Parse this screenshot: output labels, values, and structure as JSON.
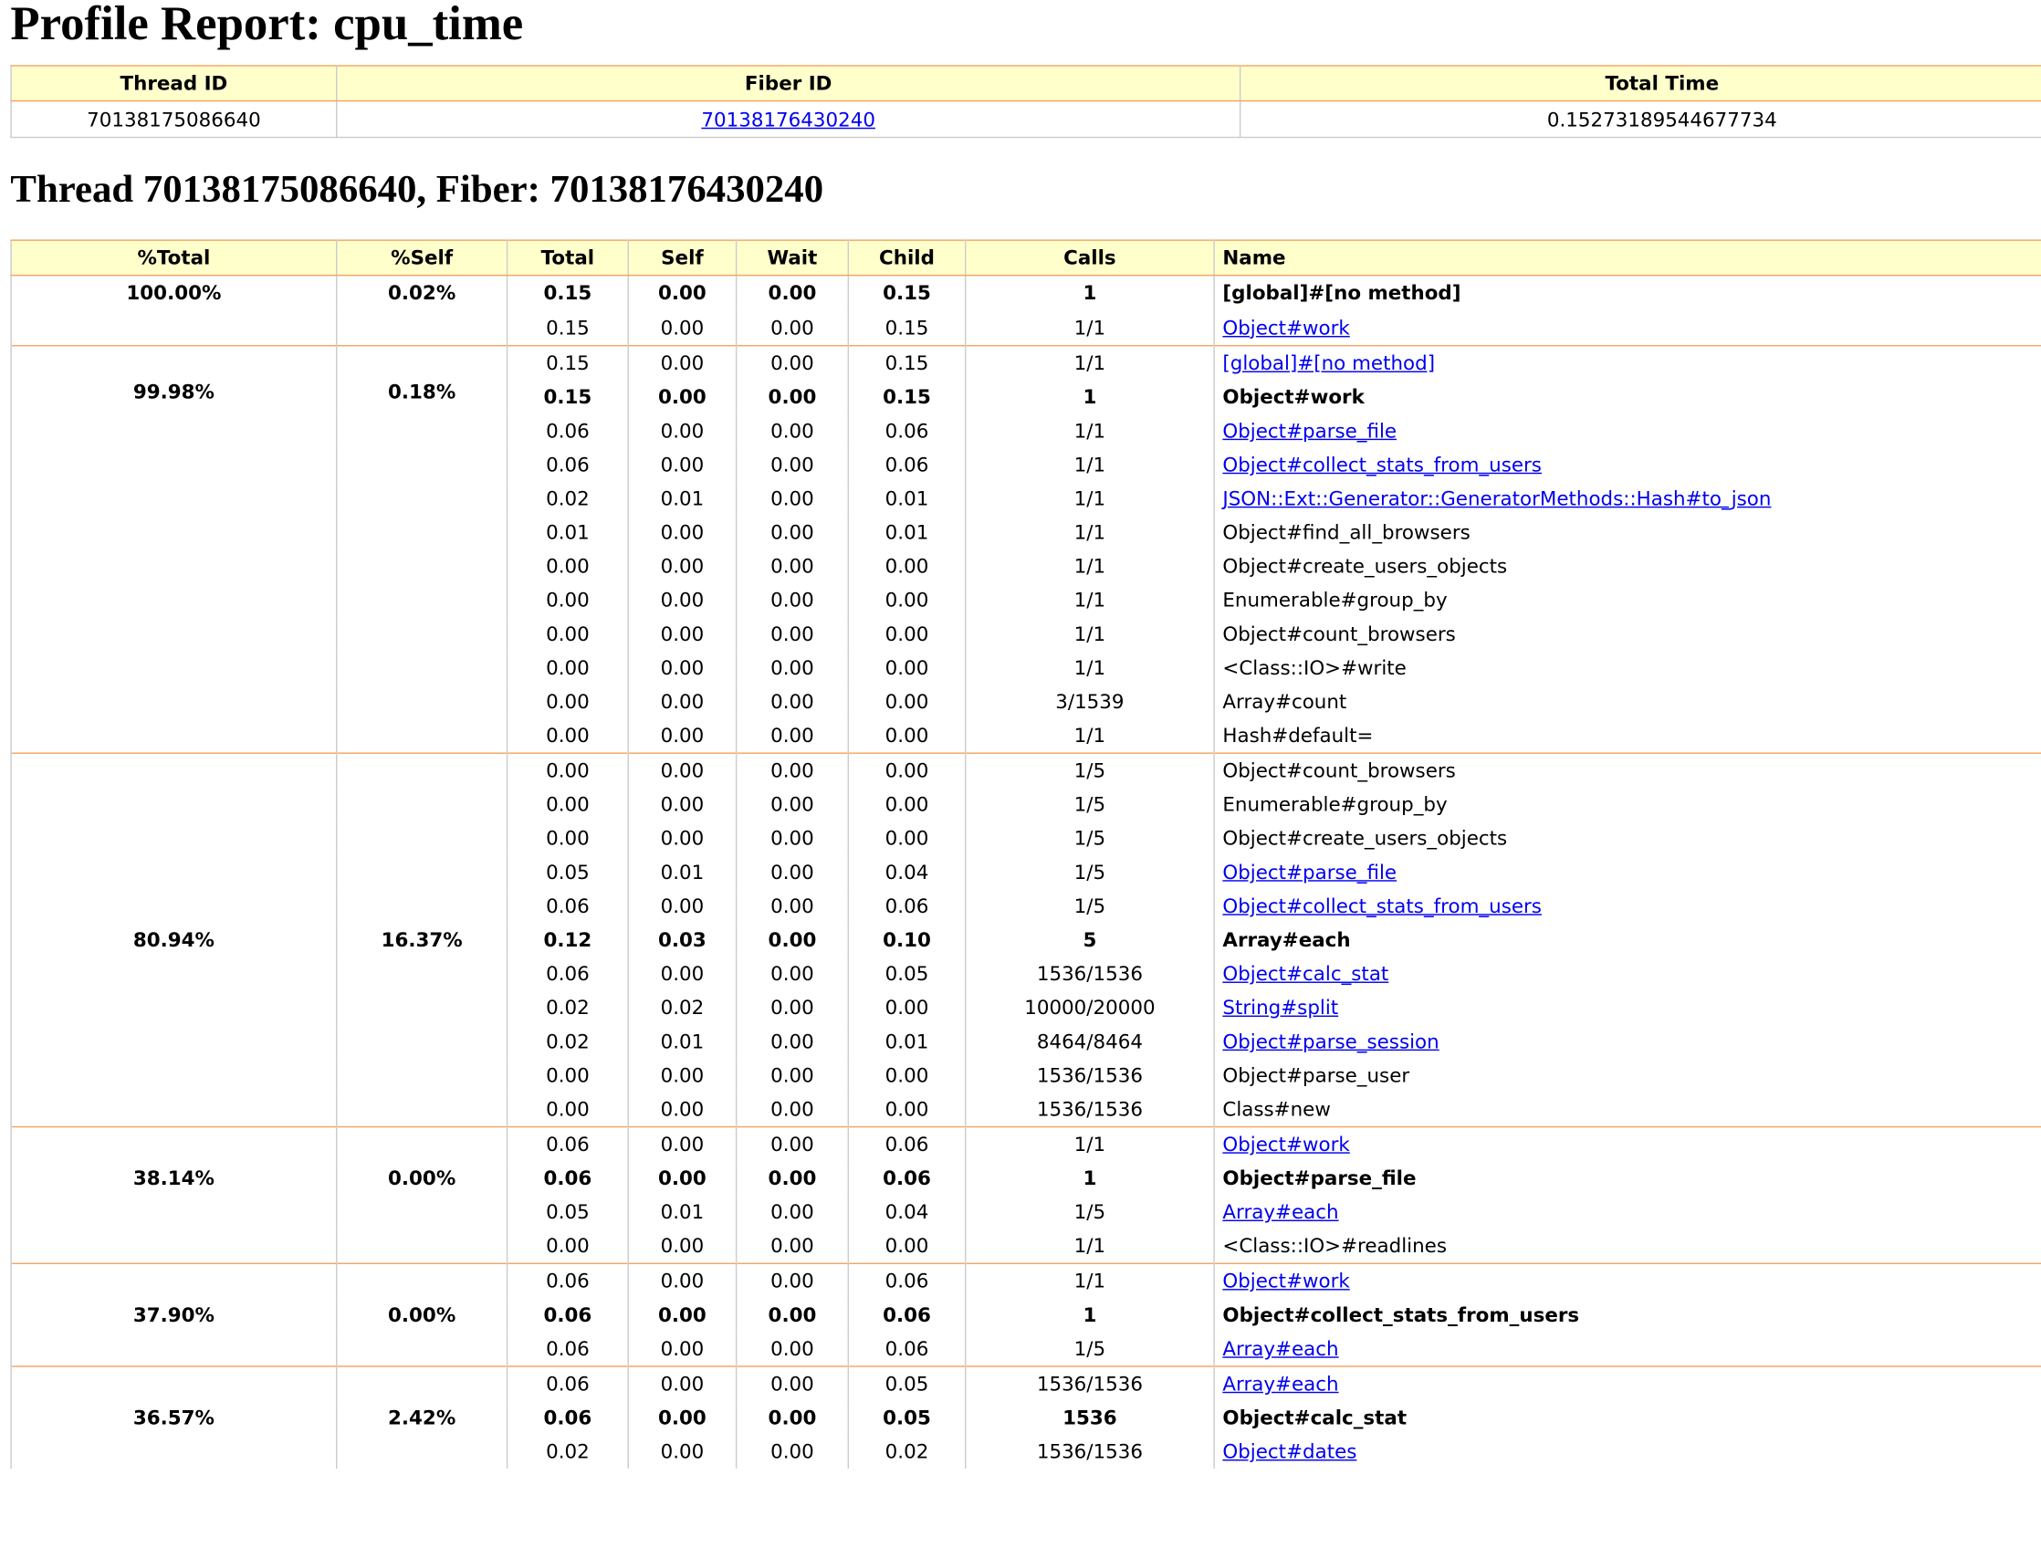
{
  "page_title": "Profile Report: cpu_time",
  "thread_table": {
    "headers": [
      "Thread ID",
      "Fiber ID",
      "Total Time"
    ],
    "row": {
      "thread_id": "70138175086640",
      "fiber_id": "70138176430240",
      "total_time": "0.15273189544677734"
    }
  },
  "thread_heading": "Thread 70138175086640, Fiber: 70138176430240",
  "method_table": {
    "headers": [
      "%Total",
      "%Self",
      "Total",
      "Self",
      "Wait",
      "Child",
      "Calls",
      "Name"
    ],
    "groups": [
      {
        "pct_total": "100.00%",
        "pct_self": "0.02%",
        "rows": [
          {
            "total": "0.15",
            "self": "0.00",
            "wait": "0.00",
            "child": "0.15",
            "calls": "1",
            "name": "[global]#[no method]",
            "kind": "primary"
          },
          {
            "total": "0.15",
            "self": "0.00",
            "wait": "0.00",
            "child": "0.15",
            "calls": "1/1",
            "name": "Object#work",
            "kind": "link"
          }
        ]
      },
      {
        "pct_total": "99.98%",
        "pct_self": "0.18%",
        "rows": [
          {
            "total": "0.15",
            "self": "0.00",
            "wait": "0.00",
            "child": "0.15",
            "calls": "1/1",
            "name": "[global]#[no method]",
            "kind": "link"
          },
          {
            "total": "0.15",
            "self": "0.00",
            "wait": "0.00",
            "child": "0.15",
            "calls": "1",
            "name": "Object#work",
            "kind": "primary"
          },
          {
            "total": "0.06",
            "self": "0.00",
            "wait": "0.00",
            "child": "0.06",
            "calls": "1/1",
            "name": "Object#parse_file",
            "kind": "link"
          },
          {
            "total": "0.06",
            "self": "0.00",
            "wait": "0.00",
            "child": "0.06",
            "calls": "1/1",
            "name": "Object#collect_stats_from_users",
            "kind": "link"
          },
          {
            "total": "0.02",
            "self": "0.01",
            "wait": "0.00",
            "child": "0.01",
            "calls": "1/1",
            "name": "JSON::Ext::Generator::GeneratorMethods::Hash#to_json",
            "kind": "link"
          },
          {
            "total": "0.01",
            "self": "0.00",
            "wait": "0.00",
            "child": "0.01",
            "calls": "1/1",
            "name": "Object#find_all_browsers",
            "kind": "text"
          },
          {
            "total": "0.00",
            "self": "0.00",
            "wait": "0.00",
            "child": "0.00",
            "calls": "1/1",
            "name": "Object#create_users_objects",
            "kind": "text"
          },
          {
            "total": "0.00",
            "self": "0.00",
            "wait": "0.00",
            "child": "0.00",
            "calls": "1/1",
            "name": "Enumerable#group_by",
            "kind": "text"
          },
          {
            "total": "0.00",
            "self": "0.00",
            "wait": "0.00",
            "child": "0.00",
            "calls": "1/1",
            "name": "Object#count_browsers",
            "kind": "text"
          },
          {
            "total": "0.00",
            "self": "0.00",
            "wait": "0.00",
            "child": "0.00",
            "calls": "1/1",
            "name": "<Class::IO>#write",
            "kind": "text"
          },
          {
            "total": "0.00",
            "self": "0.00",
            "wait": "0.00",
            "child": "0.00",
            "calls": "3/1539",
            "name": "Array#count",
            "kind": "text"
          },
          {
            "total": "0.00",
            "self": "0.00",
            "wait": "0.00",
            "child": "0.00",
            "calls": "1/1",
            "name": "Hash#default=",
            "kind": "text"
          }
        ]
      },
      {
        "pct_total": "80.94%",
        "pct_self": "16.37%",
        "rows": [
          {
            "total": "0.00",
            "self": "0.00",
            "wait": "0.00",
            "child": "0.00",
            "calls": "1/5",
            "name": "Object#count_browsers",
            "kind": "text"
          },
          {
            "total": "0.00",
            "self": "0.00",
            "wait": "0.00",
            "child": "0.00",
            "calls": "1/5",
            "name": "Enumerable#group_by",
            "kind": "text"
          },
          {
            "total": "0.00",
            "self": "0.00",
            "wait": "0.00",
            "child": "0.00",
            "calls": "1/5",
            "name": "Object#create_users_objects",
            "kind": "text"
          },
          {
            "total": "0.05",
            "self": "0.01",
            "wait": "0.00",
            "child": "0.04",
            "calls": "1/5",
            "name": "Object#parse_file",
            "kind": "link"
          },
          {
            "total": "0.06",
            "self": "0.00",
            "wait": "0.00",
            "child": "0.06",
            "calls": "1/5",
            "name": "Object#collect_stats_from_users",
            "kind": "link"
          },
          {
            "total": "0.12",
            "self": "0.03",
            "wait": "0.00",
            "child": "0.10",
            "calls": "5",
            "name": "Array#each",
            "kind": "primary"
          },
          {
            "total": "0.06",
            "self": "0.00",
            "wait": "0.00",
            "child": "0.05",
            "calls": "1536/1536",
            "name": "Object#calc_stat",
            "kind": "link"
          },
          {
            "total": "0.02",
            "self": "0.02",
            "wait": "0.00",
            "child": "0.00",
            "calls": "10000/20000",
            "name": "String#split",
            "kind": "link"
          },
          {
            "total": "0.02",
            "self": "0.01",
            "wait": "0.00",
            "child": "0.01",
            "calls": "8464/8464",
            "name": "Object#parse_session",
            "kind": "link"
          },
          {
            "total": "0.00",
            "self": "0.00",
            "wait": "0.00",
            "child": "0.00",
            "calls": "1536/1536",
            "name": "Object#parse_user",
            "kind": "text"
          },
          {
            "total": "0.00",
            "self": "0.00",
            "wait": "0.00",
            "child": "0.00",
            "calls": "1536/1536",
            "name": "Class#new",
            "kind": "text"
          }
        ]
      },
      {
        "pct_total": "38.14%",
        "pct_self": "0.00%",
        "rows": [
          {
            "total": "0.06",
            "self": "0.00",
            "wait": "0.00",
            "child": "0.06",
            "calls": "1/1",
            "name": "Object#work",
            "kind": "link"
          },
          {
            "total": "0.06",
            "self": "0.00",
            "wait": "0.00",
            "child": "0.06",
            "calls": "1",
            "name": "Object#parse_file",
            "kind": "primary"
          },
          {
            "total": "0.05",
            "self": "0.01",
            "wait": "0.00",
            "child": "0.04",
            "calls": "1/5",
            "name": "Array#each",
            "kind": "link"
          },
          {
            "total": "0.00",
            "self": "0.00",
            "wait": "0.00",
            "child": "0.00",
            "calls": "1/1",
            "name": "<Class::IO>#readlines",
            "kind": "text"
          }
        ]
      },
      {
        "pct_total": "37.90%",
        "pct_self": "0.00%",
        "rows": [
          {
            "total": "0.06",
            "self": "0.00",
            "wait": "0.00",
            "child": "0.06",
            "calls": "1/1",
            "name": "Object#work",
            "kind": "link"
          },
          {
            "total": "0.06",
            "self": "0.00",
            "wait": "0.00",
            "child": "0.06",
            "calls": "1",
            "name": "Object#collect_stats_from_users",
            "kind": "primary"
          },
          {
            "total": "0.06",
            "self": "0.00",
            "wait": "0.00",
            "child": "0.06",
            "calls": "1/5",
            "name": "Array#each",
            "kind": "link"
          }
        ]
      },
      {
        "pct_total": "36.57%",
        "pct_self": "2.42%",
        "rows": [
          {
            "total": "0.06",
            "self": "0.00",
            "wait": "0.00",
            "child": "0.05",
            "calls": "1536/1536",
            "name": "Array#each",
            "kind": "link"
          },
          {
            "total": "0.06",
            "self": "0.00",
            "wait": "0.00",
            "child": "0.05",
            "calls": "1536",
            "name": "Object#calc_stat",
            "kind": "primary"
          },
          {
            "total": "0.02",
            "self": "0.00",
            "wait": "0.00",
            "child": "0.02",
            "calls": "1536/1536",
            "name": "Object#dates",
            "kind": "link"
          }
        ]
      }
    ]
  }
}
